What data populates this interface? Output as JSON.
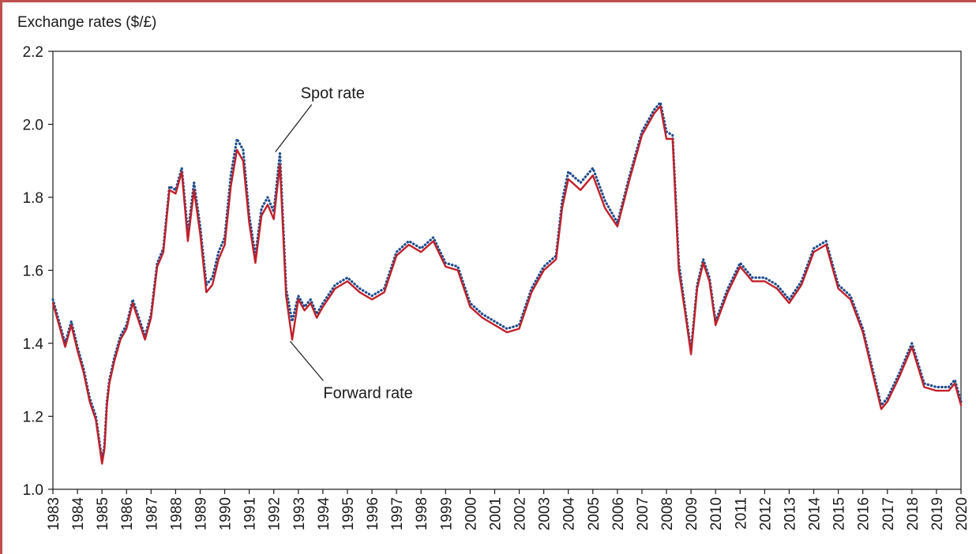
{
  "chart_data": {
    "type": "line",
    "ylabel": "Exchange rates ($/£)",
    "xlabel": "",
    "xlim": [
      1983,
      2020
    ],
    "ylim": [
      1.0,
      2.2
    ],
    "y_ticks": [
      "1.0",
      "1.2",
      "1.4",
      "1.6",
      "1.8",
      "2.0",
      "2.2"
    ],
    "x_ticks": [
      "1983",
      "1984",
      "1985",
      "1986",
      "1987",
      "1988",
      "1989",
      "1990",
      "1991",
      "1992",
      "1993",
      "1994",
      "1995",
      "1996",
      "1997",
      "1998",
      "1999",
      "2000",
      "2001",
      "2002",
      "2003",
      "2004",
      "2005",
      "2006",
      "2007",
      "2008",
      "2009",
      "2010",
      "2011",
      "2012",
      "2013",
      "2014",
      "2015",
      "2016",
      "2017",
      "2018",
      "2019",
      "2020"
    ],
    "grid": false,
    "series": [
      {
        "name": "Spot rate",
        "color": "#1f4e8c",
        "style": "dotted",
        "x": [
          1983.0,
          1983.25,
          1983.5,
          1983.75,
          1984.0,
          1984.25,
          1984.5,
          1984.75,
          1985.0,
          1985.1,
          1985.2,
          1985.3,
          1985.5,
          1985.75,
          1986.0,
          1986.25,
          1986.5,
          1986.75,
          1987.0,
          1987.25,
          1987.5,
          1987.75,
          1988.0,
          1988.25,
          1988.5,
          1988.75,
          1989.0,
          1989.25,
          1989.5,
          1989.75,
          1990.0,
          1990.25,
          1990.5,
          1990.75,
          1991.0,
          1991.25,
          1991.5,
          1991.75,
          1992.0,
          1992.25,
          1992.5,
          1992.75,
          1993.0,
          1993.25,
          1993.5,
          1993.75,
          1994.0,
          1994.5,
          1995.0,
          1995.5,
          1996.0,
          1996.5,
          1997.0,
          1997.5,
          1998.0,
          1998.5,
          1999.0,
          1999.5,
          2000.0,
          2000.5,
          2001.0,
          2001.5,
          2002.0,
          2002.5,
          2003.0,
          2003.5,
          2003.75,
          2004.0,
          2004.5,
          2005.0,
          2005.5,
          2006.0,
          2006.5,
          2007.0,
          2007.5,
          2007.75,
          2008.0,
          2008.25,
          2008.5,
          2008.75,
          2009.0,
          2009.25,
          2009.5,
          2009.75,
          2010.0,
          2010.5,
          2011.0,
          2011.5,
          2012.0,
          2012.5,
          2013.0,
          2013.5,
          2014.0,
          2014.5,
          2014.75,
          2015.0,
          2015.5,
          2016.0,
          2016.5,
          2016.75,
          2017.0,
          2017.5,
          2018.0,
          2018.5,
          2019.0,
          2019.5,
          2019.75,
          2020.0
        ],
        "values": [
          1.52,
          1.46,
          1.4,
          1.46,
          1.39,
          1.33,
          1.25,
          1.2,
          1.08,
          1.12,
          1.24,
          1.3,
          1.36,
          1.42,
          1.45,
          1.52,
          1.47,
          1.42,
          1.48,
          1.62,
          1.66,
          1.83,
          1.82,
          1.88,
          1.7,
          1.84,
          1.72,
          1.56,
          1.58,
          1.65,
          1.69,
          1.86,
          1.96,
          1.93,
          1.75,
          1.64,
          1.77,
          1.8,
          1.76,
          1.92,
          1.55,
          1.46,
          1.53,
          1.5,
          1.52,
          1.48,
          1.51,
          1.56,
          1.58,
          1.55,
          1.53,
          1.55,
          1.65,
          1.68,
          1.66,
          1.69,
          1.62,
          1.61,
          1.51,
          1.48,
          1.46,
          1.44,
          1.45,
          1.55,
          1.61,
          1.64,
          1.79,
          1.87,
          1.84,
          1.88,
          1.79,
          1.73,
          1.86,
          1.98,
          2.04,
          2.06,
          1.98,
          1.97,
          1.62,
          1.5,
          1.38,
          1.56,
          1.63,
          1.58,
          1.46,
          1.55,
          1.62,
          1.58,
          1.58,
          1.56,
          1.52,
          1.57,
          1.66,
          1.68,
          1.62,
          1.56,
          1.53,
          1.44,
          1.3,
          1.23,
          1.25,
          1.32,
          1.4,
          1.29,
          1.28,
          1.28,
          1.3,
          1.24
        ]
      },
      {
        "name": "Forward rate",
        "color": "#c0202a",
        "style": "solid",
        "x": [
          1983.0,
          1983.25,
          1983.5,
          1983.75,
          1984.0,
          1984.25,
          1984.5,
          1984.75,
          1985.0,
          1985.1,
          1985.2,
          1985.3,
          1985.5,
          1985.75,
          1986.0,
          1986.25,
          1986.5,
          1986.75,
          1987.0,
          1987.25,
          1987.5,
          1987.75,
          1988.0,
          1988.25,
          1988.5,
          1988.75,
          1989.0,
          1989.25,
          1989.5,
          1989.75,
          1990.0,
          1990.25,
          1990.5,
          1990.75,
          1991.0,
          1991.25,
          1991.5,
          1991.75,
          1992.0,
          1992.25,
          1992.5,
          1992.75,
          1993.0,
          1993.25,
          1993.5,
          1993.75,
          1994.0,
          1994.5,
          1995.0,
          1995.5,
          1996.0,
          1996.5,
          1997.0,
          1997.5,
          1998.0,
          1998.5,
          1999.0,
          1999.5,
          2000.0,
          2000.5,
          2001.0,
          2001.5,
          2002.0,
          2002.5,
          2003.0,
          2003.5,
          2003.75,
          2004.0,
          2004.5,
          2005.0,
          2005.5,
          2006.0,
          2006.5,
          2007.0,
          2007.5,
          2007.75,
          2008.0,
          2008.25,
          2008.5,
          2008.75,
          2009.0,
          2009.25,
          2009.5,
          2009.75,
          2010.0,
          2010.5,
          2011.0,
          2011.5,
          2012.0,
          2012.5,
          2013.0,
          2013.5,
          2014.0,
          2014.5,
          2014.75,
          2015.0,
          2015.5,
          2016.0,
          2016.5,
          2016.75,
          2017.0,
          2017.5,
          2018.0,
          2018.5,
          2019.0,
          2019.5,
          2019.75,
          2020.0
        ],
        "values": [
          1.51,
          1.45,
          1.39,
          1.45,
          1.38,
          1.32,
          1.24,
          1.19,
          1.07,
          1.11,
          1.23,
          1.29,
          1.35,
          1.41,
          1.44,
          1.51,
          1.46,
          1.41,
          1.47,
          1.61,
          1.65,
          1.82,
          1.81,
          1.87,
          1.68,
          1.82,
          1.7,
          1.54,
          1.56,
          1.63,
          1.67,
          1.83,
          1.93,
          1.9,
          1.73,
          1.62,
          1.75,
          1.78,
          1.74,
          1.89,
          1.53,
          1.41,
          1.52,
          1.49,
          1.51,
          1.47,
          1.5,
          1.55,
          1.57,
          1.54,
          1.52,
          1.54,
          1.64,
          1.67,
          1.65,
          1.68,
          1.61,
          1.6,
          1.5,
          1.47,
          1.45,
          1.43,
          1.44,
          1.54,
          1.6,
          1.63,
          1.77,
          1.85,
          1.82,
          1.86,
          1.77,
          1.72,
          1.85,
          1.97,
          2.03,
          2.05,
          1.96,
          1.96,
          1.6,
          1.49,
          1.37,
          1.55,
          1.62,
          1.57,
          1.45,
          1.54,
          1.61,
          1.57,
          1.57,
          1.55,
          1.51,
          1.56,
          1.65,
          1.67,
          1.61,
          1.55,
          1.52,
          1.43,
          1.29,
          1.22,
          1.24,
          1.31,
          1.39,
          1.28,
          1.27,
          1.27,
          1.29,
          1.23
        ]
      }
    ],
    "annotations": [
      {
        "text": "Spot rate",
        "x": 1992.0,
        "y": 1.92
      },
      {
        "text": "Forward rate",
        "x": 1992.6,
        "y": 1.41
      }
    ]
  }
}
